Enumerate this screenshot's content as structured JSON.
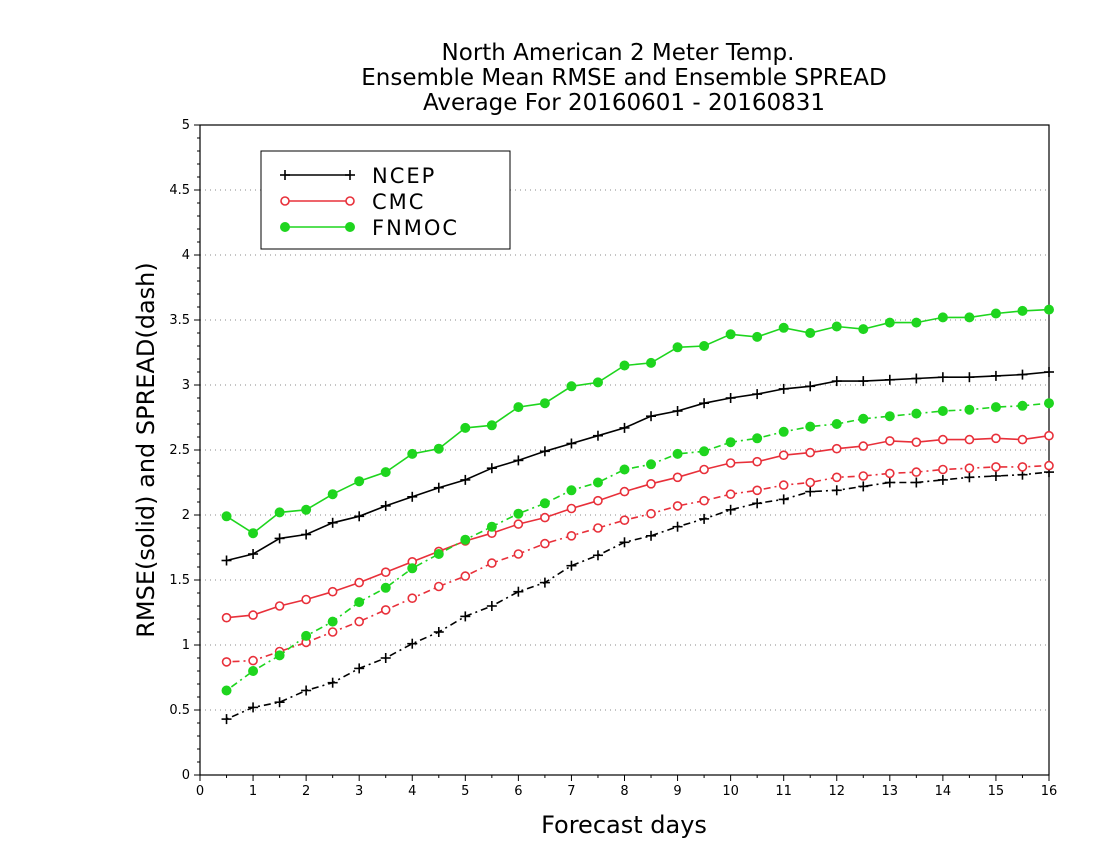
{
  "chart_data": {
    "type": "line",
    "title": [
      "North American 2 Meter Temp.",
      "Ensemble Mean RMSE and Ensemble SPREAD",
      "Average For 20160601 - 20160831"
    ],
    "xlabel": "Forecast days",
    "ylabel": "RMSE(solid) and SPREAD(dash)",
    "xlim": [
      0,
      16
    ],
    "ylim": [
      0,
      5
    ],
    "xticks": [
      0,
      1,
      2,
      3,
      4,
      5,
      6,
      7,
      8,
      9,
      10,
      11,
      12,
      13,
      14,
      15,
      16
    ],
    "yticks": [
      0,
      0.5,
      1,
      1.5,
      2,
      2.5,
      3,
      3.5,
      4,
      4.5,
      5
    ],
    "ytick_labels": [
      "0",
      "0.5",
      "1",
      "1.5",
      "2",
      "2.5",
      "3",
      "3.5",
      "4",
      "4.5",
      "5"
    ],
    "grid": "horizontal-dotted",
    "legend_position": "top-left",
    "x": [
      0.5,
      1,
      1.5,
      2,
      2.5,
      3,
      3.5,
      4,
      4.5,
      5,
      5.5,
      6,
      6.5,
      7,
      7.5,
      8,
      8.5,
      9,
      9.5,
      10,
      10.5,
      11,
      11.5,
      12,
      12.5,
      13,
      13.5,
      14,
      14.5,
      15,
      15.5,
      16
    ],
    "series": [
      {
        "name": "NCEP",
        "color": "#000000",
        "marker": "plus",
        "legend": true,
        "line": "solid",
        "metric": "RMSE",
        "values": [
          1.65,
          1.7,
          1.82,
          1.85,
          1.94,
          1.99,
          2.07,
          2.14,
          2.21,
          2.27,
          2.36,
          2.42,
          2.49,
          2.55,
          2.61,
          2.67,
          2.76,
          2.8,
          2.86,
          2.9,
          2.93,
          2.97,
          2.99,
          3.03,
          3.03,
          3.04,
          3.05,
          3.06,
          3.06,
          3.07,
          3.08,
          3.1
        ]
      },
      {
        "name": "CMC",
        "color": "#e8303a",
        "marker": "open-circle",
        "legend": true,
        "line": "solid",
        "metric": "RMSE",
        "values": [
          1.21,
          1.23,
          1.3,
          1.35,
          1.41,
          1.48,
          1.56,
          1.64,
          1.72,
          1.8,
          1.86,
          1.93,
          1.98,
          2.05,
          2.11,
          2.18,
          2.24,
          2.29,
          2.35,
          2.4,
          2.41,
          2.46,
          2.48,
          2.51,
          2.53,
          2.57,
          2.56,
          2.58,
          2.58,
          2.59,
          2.58,
          2.61
        ]
      },
      {
        "name": "FNMOC",
        "color": "#1ed51e",
        "marker": "filled-circle",
        "legend": true,
        "line": "solid",
        "metric": "RMSE",
        "values": [
          1.99,
          1.86,
          2.02,
          2.04,
          2.16,
          2.26,
          2.33,
          2.47,
          2.51,
          2.67,
          2.69,
          2.83,
          2.86,
          2.99,
          3.02,
          3.15,
          3.17,
          3.29,
          3.3,
          3.39,
          3.37,
          3.44,
          3.4,
          3.45,
          3.43,
          3.48,
          3.48,
          3.52,
          3.52,
          3.55,
          3.57,
          3.58
        ]
      },
      {
        "name": "NCEP",
        "color": "#000000",
        "marker": "plus",
        "legend": false,
        "line": "dash",
        "metric": "SPREAD",
        "values": [
          0.43,
          0.52,
          0.56,
          0.65,
          0.71,
          0.82,
          0.9,
          1.01,
          1.1,
          1.22,
          1.3,
          1.41,
          1.48,
          1.61,
          1.69,
          1.79,
          1.84,
          1.91,
          1.97,
          2.04,
          2.09,
          2.12,
          2.18,
          2.19,
          2.22,
          2.25,
          2.25,
          2.27,
          2.29,
          2.3,
          2.31,
          2.33
        ]
      },
      {
        "name": "CMC",
        "color": "#e8303a",
        "marker": "open-circle",
        "legend": false,
        "line": "dash",
        "metric": "SPREAD",
        "values": [
          0.87,
          0.88,
          0.95,
          1.02,
          1.1,
          1.18,
          1.27,
          1.36,
          1.45,
          1.53,
          1.63,
          1.7,
          1.78,
          1.84,
          1.9,
          1.96,
          2.01,
          2.07,
          2.11,
          2.16,
          2.19,
          2.23,
          2.25,
          2.29,
          2.3,
          2.32,
          2.33,
          2.35,
          2.36,
          2.37,
          2.37,
          2.38
        ]
      },
      {
        "name": "FNMOC",
        "color": "#1ed51e",
        "marker": "filled-circle",
        "legend": false,
        "line": "dash",
        "metric": "SPREAD",
        "values": [
          0.65,
          0.8,
          0.92,
          1.07,
          1.18,
          1.33,
          1.44,
          1.59,
          1.7,
          1.81,
          1.91,
          2.01,
          2.09,
          2.19,
          2.25,
          2.35,
          2.39,
          2.47,
          2.49,
          2.56,
          2.59,
          2.64,
          2.68,
          2.7,
          2.74,
          2.76,
          2.78,
          2.8,
          2.81,
          2.83,
          2.84,
          2.86
        ]
      }
    ]
  }
}
